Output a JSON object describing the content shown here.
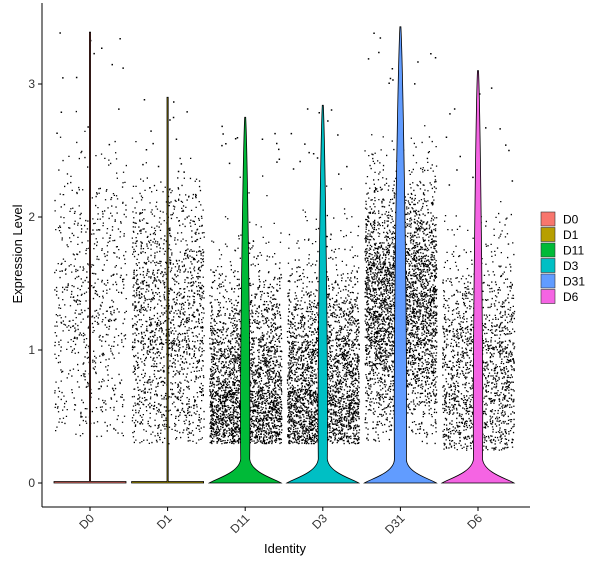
{
  "chart_data": {
    "type": "violin",
    "xlabel": "Identity",
    "ylabel": "Expression Level",
    "ylim": [
      -0.18,
      3.48
    ],
    "yticks": [
      0,
      1,
      2,
      3
    ],
    "grid": false,
    "legend_position": "right",
    "categories": [
      "D0",
      "D1",
      "D11",
      "D3",
      "D31",
      "D6"
    ],
    "series": [
      {
        "name": "D0",
        "color": "#F8766D",
        "max": 3.39,
        "points_density": "sparse",
        "cluster_low": 0.35,
        "cluster_high": 2.5
      },
      {
        "name": "D1",
        "color": "#B79F00",
        "max": 2.9,
        "points_density": "moderate",
        "cluster_low": 0.3,
        "cluster_high": 2.3
      },
      {
        "name": "D11",
        "color": "#00BA38",
        "max": 2.75,
        "points_density": "dense",
        "cluster_low": 0.3,
        "cluster_high": 2.4
      },
      {
        "name": "D3",
        "color": "#00BFC4",
        "max": 2.84,
        "points_density": "dense",
        "cluster_low": 0.3,
        "cluster_high": 2.3
      },
      {
        "name": "D31",
        "color": "#619CFF",
        "max": 3.43,
        "points_density": "very dense",
        "cluster_low": 0.3,
        "cluster_high": 2.8
      },
      {
        "name": "D6",
        "color": "#F564E3",
        "max": 3.1,
        "points_density": "moderate",
        "cluster_low": 0.25,
        "cluster_high": 2.2
      }
    ]
  }
}
